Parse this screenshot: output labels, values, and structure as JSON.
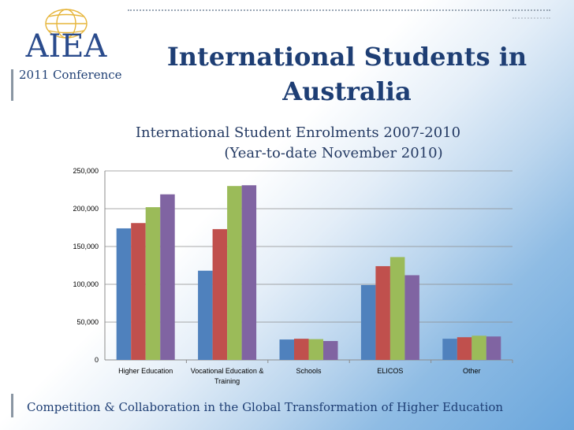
{
  "header": {
    "logo_text": "AIEA",
    "conference": "2011 Conference",
    "title_line1": "International Students in",
    "title_line2": "Australia"
  },
  "chart_data": {
    "type": "bar",
    "title": "International Student Enrolments 2007-2010",
    "subtitle": "(Year-to-date November 2010)",
    "categories": [
      "Higher Education",
      "Vocational Education & Training",
      "Schools",
      "ELICOS",
      "Other"
    ],
    "category_lines": [
      [
        "Higher Education"
      ],
      [
        "Vocational Education &",
        "Training"
      ],
      [
        "Schools"
      ],
      [
        "ELICOS"
      ],
      [
        "Other"
      ]
    ],
    "series": [
      {
        "values": [
          174000,
          118000,
          27000,
          99000,
          28000
        ],
        "color": "#4f81bd"
      },
      {
        "values": [
          181000,
          173000,
          28000,
          124000,
          30000
        ],
        "color": "#c0504d"
      },
      {
        "values": [
          202000,
          230000,
          27500,
          136000,
          32000
        ],
        "color": "#9bbb59"
      },
      {
        "values": [
          219000,
          231000,
          25000,
          112000,
          31000
        ],
        "color": "#8064a2"
      }
    ],
    "ylim": [
      0,
      250000
    ],
    "yticks": [
      0,
      50000,
      100000,
      150000,
      200000,
      250000
    ],
    "ytick_labels": [
      "0",
      "50,000",
      "100,000",
      "150,000",
      "200,000",
      "250,000"
    ],
    "grid": true,
    "legend": "none"
  },
  "footer": {
    "text": "Competition & Collaboration in the Global Transformation of Higher Education"
  },
  "colors": {
    "title": "#1e3e74",
    "accent": "#6aa6dc"
  }
}
